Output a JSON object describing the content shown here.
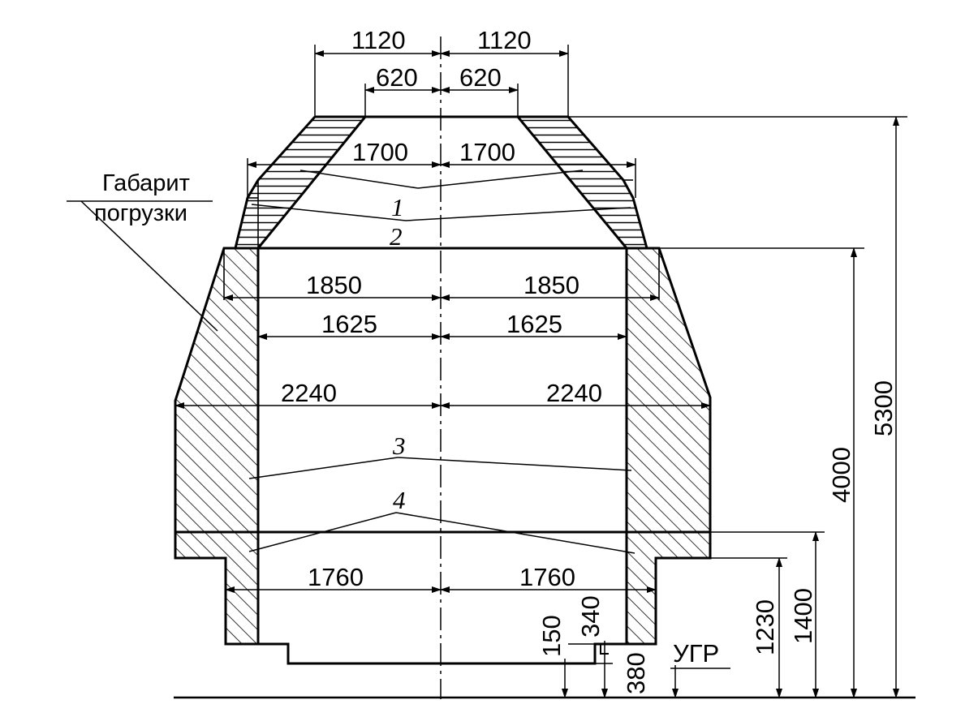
{
  "label_gabarit_line1": "Габарит",
  "label_gabarit_line2": "погрузки",
  "callouts": {
    "c1": "1",
    "c2": "2",
    "c3": "3",
    "c4": "4"
  },
  "dims": {
    "top_outer_left": "1120",
    "top_outer_right": "1120",
    "top_inner_left": "620",
    "top_inner_right": "620",
    "w1700_left": "1700",
    "w1700_right": "1700",
    "w1850_left": "1850",
    "w1850_right": "1850",
    "w1625_left": "1625",
    "w1625_right": "1625",
    "w2240_left": "2240",
    "w2240_right": "2240",
    "w1760_left": "1760",
    "w1760_right": "1760",
    "h150": "150",
    "h340": "340",
    "h380": "380",
    "ugr": "УГР",
    "h1230": "1230",
    "h1400": "1400",
    "h4000": "4000",
    "h5300": "5300"
  },
  "colors": {
    "line": "#000000",
    "background": "#ffffff"
  }
}
